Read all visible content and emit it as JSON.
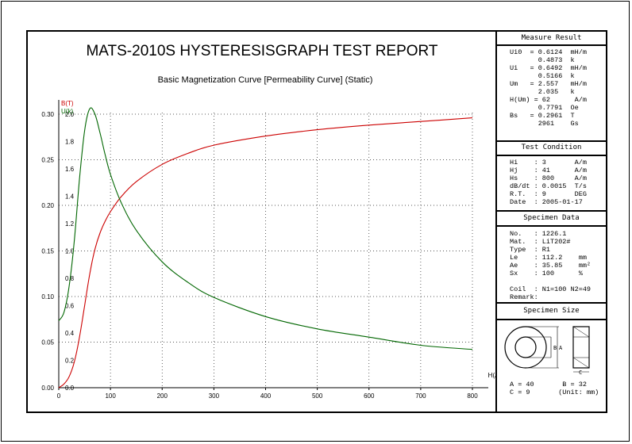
{
  "report_title": "MATS-2010S HYSTERESISGRAPH TEST REPORT",
  "chart_data": {
    "type": "line",
    "title": "Basic Magnetization Curve [Permeability Curve] (Static)",
    "xlabel": "H(A/m)",
    "xlim": [
      0,
      800
    ],
    "xticks": [
      0,
      100,
      200,
      300,
      400,
      500,
      600,
      700,
      800
    ],
    "left_axis": {
      "label": "B(T)",
      "lim": [
        0,
        0.3
      ],
      "ticks": [
        "0.00",
        "0.05",
        "0.10",
        "0.15",
        "0.20",
        "0.25",
        "0.30"
      ],
      "color": "#cc0000"
    },
    "right_axis": {
      "label": "U(k)",
      "lim": [
        0,
        2.0
      ],
      "ticks": [
        "0.0",
        "0.2",
        "0.4",
        "0.6",
        "0.8",
        "1.0",
        "1.2",
        "1.4",
        "1.6",
        "1.8",
        "2.0"
      ],
      "color": "#006600"
    },
    "series": [
      {
        "name": "B(T)",
        "axis": "left",
        "color": "#cc0000",
        "x": [
          0,
          10,
          20,
          30,
          40,
          50,
          60,
          70,
          80,
          90,
          100,
          120,
          150,
          200,
          250,
          300,
          400,
          500,
          600,
          700,
          800
        ],
        "y": [
          0,
          0.004,
          0.012,
          0.028,
          0.055,
          0.09,
          0.125,
          0.152,
          0.17,
          0.183,
          0.193,
          0.209,
          0.226,
          0.245,
          0.257,
          0.266,
          0.276,
          0.283,
          0.288,
          0.292,
          0.296
        ]
      },
      {
        "name": "U(k)",
        "axis": "right",
        "color": "#006600",
        "x": [
          0,
          10,
          20,
          30,
          40,
          50,
          60,
          70,
          80,
          90,
          100,
          120,
          150,
          200,
          250,
          300,
          400,
          500,
          600,
          700,
          800
        ],
        "y": [
          0.49,
          0.55,
          0.74,
          1.07,
          1.52,
          1.88,
          2.04,
          2.0,
          1.86,
          1.7,
          1.56,
          1.36,
          1.15,
          0.92,
          0.77,
          0.66,
          0.52,
          0.43,
          0.37,
          0.31,
          0.28
        ]
      }
    ]
  },
  "measure_result": {
    "title": "Measure Result",
    "rows": [
      "Ui0  = 0.6124  mH/m",
      "       0.4873  k",
      "Ui   = 0.6492  mH/m",
      "       0.5166  k",
      "Um   = 2.557   mH/m",
      "       2.035   k",
      "H(Um) = 62      A/m",
      "       0.7791  Oe",
      "Bs   = 0.2961  T",
      "       2961    Gs"
    ]
  },
  "test_condition": {
    "title": "Test Condition",
    "rows": [
      "Hi    : 3       A/m",
      "Hj    : 41      A/m",
      "Hs    : 800     A/m",
      "dB/dt : 0.0015  T/s",
      "R.T.  : 9       DEG",
      "Date  : 2005-01-17"
    ]
  },
  "specimen_data": {
    "title": "Specimen Data",
    "rows": [
      "No.   : 1226.1",
      "Mat.  : LiT202#",
      "Type  : R1",
      "Le    : 112.2    mm",
      "Ae    : 35.85    mm²",
      "Sx    : 100      %",
      "",
      "Coil  : N1=100 N2=49",
      "Remark:"
    ]
  },
  "specimen_size": {
    "title": "Specimen Size",
    "label_b": "B",
    "label_a": "A",
    "label_c": "C",
    "rows": [
      "A = 40       B = 32",
      "C = 9       (Unit: mm)"
    ]
  }
}
